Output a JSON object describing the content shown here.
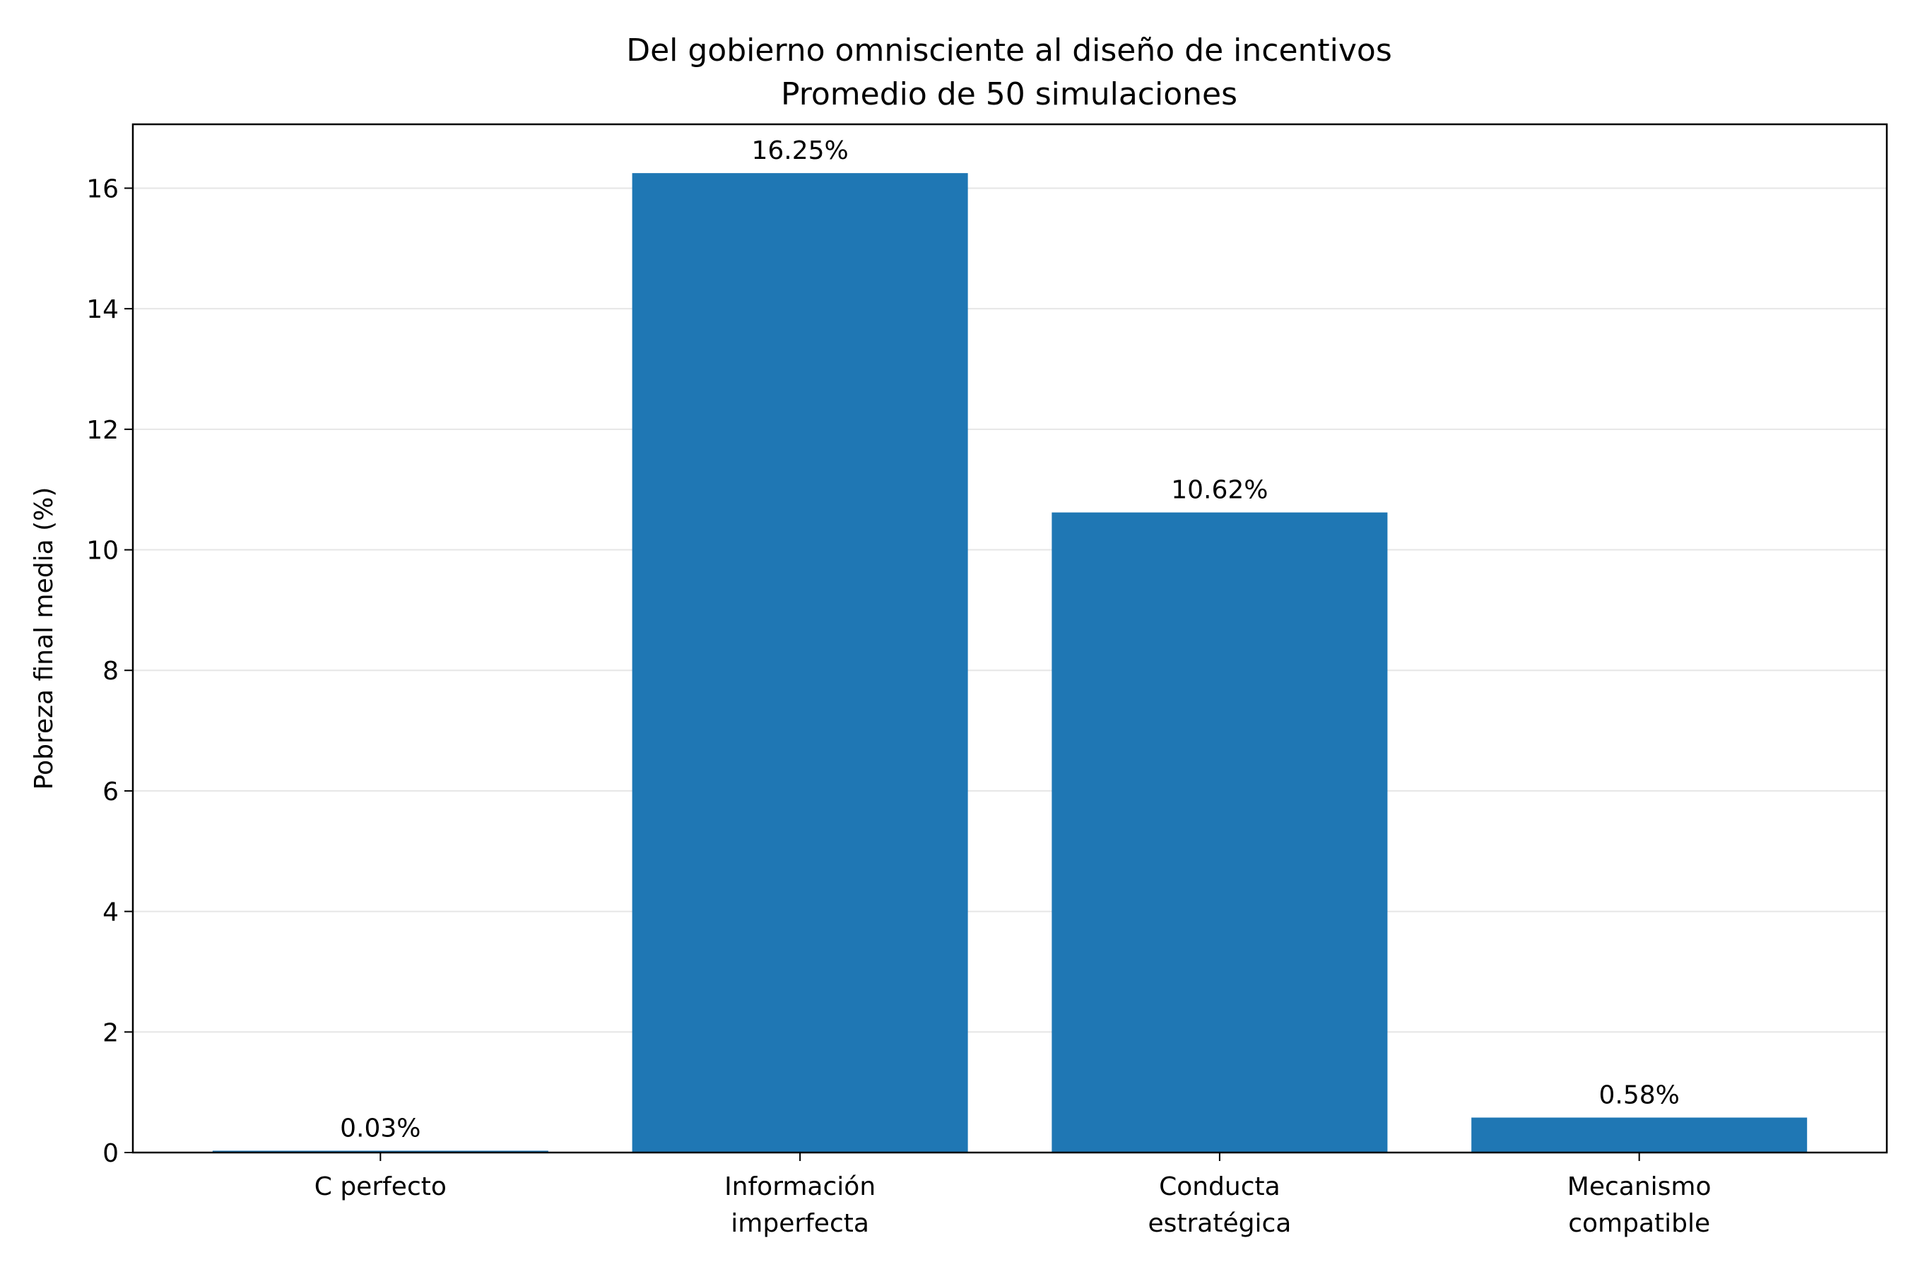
{
  "chart_data": {
    "type": "bar",
    "title": "Del gobierno omnisciente al diseño de incentivos",
    "subtitle": "Promedio de 50 simulaciones",
    "xlabel": "",
    "ylabel": "Pobreza final media (%)",
    "categories": [
      [
        "C perfecto"
      ],
      [
        "Información",
        "imperfecta"
      ],
      [
        "Conducta",
        "estratégica"
      ],
      [
        "Mecanismo",
        "compatible"
      ]
    ],
    "values": [
      0.03,
      16.25,
      10.62,
      0.58
    ],
    "value_labels": [
      "0.03%",
      "16.25%",
      "10.62%",
      "0.58%"
    ],
    "ylim": [
      0,
      17.06
    ],
    "yticks": [
      0,
      2,
      4,
      6,
      8,
      10,
      12,
      14,
      16
    ],
    "grid": "y",
    "bar_color": "#1f77b4"
  }
}
